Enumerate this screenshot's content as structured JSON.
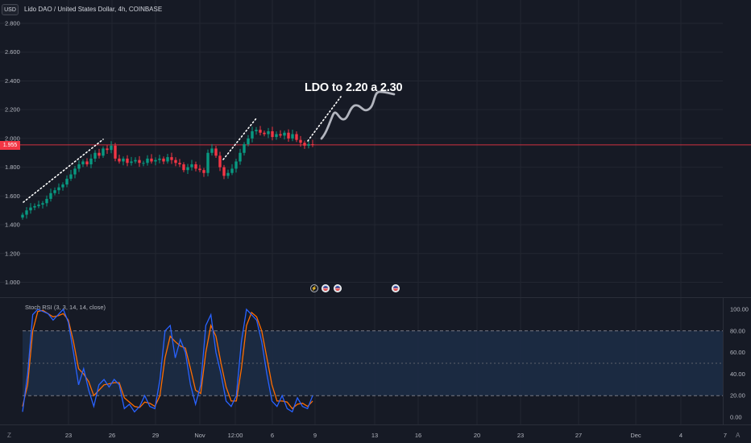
{
  "currency_button": "USD",
  "symbol_title": "Lido DAO / United States Dollar, 4h, COINBASE",
  "last_price_tag": "1.955",
  "annotation_text": "LDO to 2.20 a 2.30",
  "price_axis_labels": [
    "2.800",
    "2.600",
    "2.400",
    "2.200",
    "2.000",
    "1.800",
    "1.600",
    "1.400",
    "1.200",
    "1.000"
  ],
  "rsi_indicator_title": "Stoch RSI (3, 3, 14, 14, close)",
  "rsi_axis_labels": [
    "100.00",
    "80.00",
    "60.00",
    "40.00",
    "20.00",
    "0.00"
  ],
  "time_axis_labels": [
    "23",
    "26",
    "29",
    "Nov",
    "12:00",
    "6",
    "9",
    "13",
    "16",
    "20",
    "23",
    "27",
    "Dec",
    "4",
    "7"
  ],
  "corner_icons": {
    "left": "Z",
    "right": "A"
  },
  "event_markers": [
    "lightning-event",
    "us-flag-event",
    "us-flag-event",
    "us-flag-event"
  ],
  "colors": {
    "background": "#161a25",
    "up_candle": "#089981",
    "down_candle": "#f23645",
    "k_line": "#2962ff",
    "d_line": "#ff6d00",
    "band_fill": "#1c2c45",
    "last_price_line": "#f23645"
  },
  "chart_data": {
    "type": "candlestick",
    "price_range": [
      1.0,
      2.8
    ],
    "rsi_range": [
      0,
      100
    ],
    "rsi_bands": [
      20,
      80
    ],
    "last_price": 1.955,
    "candles_close_approx": [
      1.47,
      1.5,
      1.52,
      1.53,
      1.54,
      1.55,
      1.58,
      1.62,
      1.64,
      1.66,
      1.68,
      1.72,
      1.75,
      1.79,
      1.82,
      1.84,
      1.82,
      1.86,
      1.9,
      1.88,
      1.93,
      1.92,
      1.95,
      1.86,
      1.84,
      1.86,
      1.83,
      1.84,
      1.85,
      1.83,
      1.83,
      1.86,
      1.84,
      1.85,
      1.86,
      1.84,
      1.87,
      1.85,
      1.83,
      1.82,
      1.78,
      1.8,
      1.82,
      1.79,
      1.78,
      1.76,
      1.9,
      1.93,
      1.88,
      1.8,
      1.74,
      1.76,
      1.79,
      1.84,
      1.9,
      1.96,
      2.0,
      2.05,
      2.06,
      2.04,
      2.03,
      2.05,
      2.01,
      2.03,
      2.02,
      2.04,
      2.0,
      2.03,
      1.99,
      1.97,
      1.95,
      1.96,
      1.955
    ],
    "stoch_k": [
      5,
      40,
      95,
      100,
      98,
      96,
      90,
      95,
      100,
      88,
      60,
      30,
      45,
      25,
      10,
      30,
      35,
      28,
      35,
      30,
      8,
      12,
      5,
      10,
      20,
      10,
      8,
      35,
      80,
      85,
      55,
      72,
      60,
      30,
      12,
      30,
      85,
      95,
      60,
      40,
      15,
      10,
      20,
      70,
      100,
      95,
      90,
      70,
      40,
      15,
      10,
      20,
      8,
      5,
      18,
      10,
      8,
      20
    ],
    "stoch_d": [
      10,
      30,
      80,
      98,
      99,
      96,
      93,
      94,
      96,
      90,
      70,
      45,
      40,
      33,
      20,
      25,
      30,
      31,
      32,
      32,
      18,
      14,
      10,
      9,
      14,
      13,
      10,
      20,
      55,
      75,
      70,
      66,
      64,
      45,
      25,
      22,
      60,
      85,
      75,
      50,
      28,
      15,
      15,
      45,
      85,
      97,
      93,
      80,
      55,
      30,
      15,
      15,
      14,
      8,
      12,
      13,
      10,
      15
    ]
  }
}
